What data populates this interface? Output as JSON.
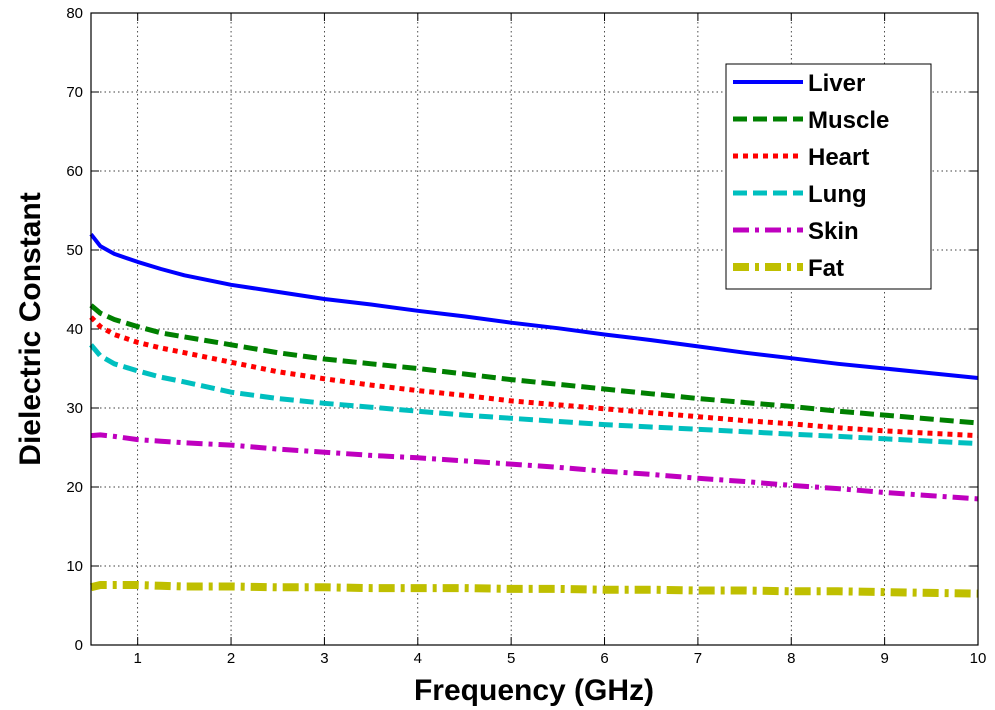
{
  "chart_data": {
    "type": "line",
    "title": "",
    "xlabel": "Frequency (GHz)",
    "ylabel": "Dielectric Constant",
    "xlim": [
      0.5,
      10
    ],
    "ylim": [
      0,
      80
    ],
    "xticks": [
      1,
      2,
      3,
      4,
      5,
      6,
      7,
      8,
      9,
      10
    ],
    "yticks": [
      0,
      10,
      20,
      30,
      40,
      50,
      60,
      70,
      80
    ],
    "grid": true,
    "legend_position": "top-right",
    "series": [
      {
        "name": "Liver",
        "color": "#0000ff",
        "style": "solid",
        "x": [
          0.5,
          0.6,
          0.75,
          1.0,
          1.25,
          1.5,
          2.0,
          2.5,
          3.0,
          3.5,
          4.0,
          4.5,
          5.0,
          5.5,
          6.0,
          6.5,
          7.0,
          7.5,
          8.0,
          8.5,
          9.0,
          9.5,
          10.0
        ],
        "y": [
          52,
          50.5,
          49.5,
          48.5,
          47.6,
          46.8,
          45.6,
          44.7,
          43.8,
          43.1,
          42.3,
          41.6,
          40.8,
          40.1,
          39.3,
          38.6,
          37.8,
          37.0,
          36.3,
          35.6,
          35.0,
          34.4,
          33.8
        ]
      },
      {
        "name": "Muscle",
        "color": "#008000",
        "style": "dashed",
        "x": [
          0.5,
          0.6,
          0.75,
          1.0,
          1.25,
          1.5,
          2.0,
          2.5,
          3.0,
          3.5,
          4.0,
          4.5,
          5.0,
          5.5,
          6.0,
          6.5,
          7.0,
          7.5,
          8.0,
          8.5,
          9.0,
          9.5,
          10.0
        ],
        "y": [
          43,
          42,
          41.2,
          40.3,
          39.5,
          39.0,
          38.0,
          37.0,
          36.2,
          35.6,
          35.0,
          34.3,
          33.6,
          33.0,
          32.4,
          31.8,
          31.2,
          30.7,
          30.2,
          29.6,
          29.1,
          28.6,
          28.1
        ]
      },
      {
        "name": "Heart",
        "color": "#ff0000",
        "style": "dotted",
        "x": [
          0.5,
          0.6,
          0.75,
          1.0,
          1.25,
          1.5,
          2.0,
          2.5,
          3.0,
          3.5,
          4.0,
          4.5,
          5.0,
          5.5,
          6.0,
          6.5,
          7.0,
          7.5,
          8.0,
          8.5,
          9.0,
          9.5,
          10.0
        ],
        "y": [
          41.5,
          40.3,
          39.3,
          38.3,
          37.6,
          37.0,
          35.8,
          34.6,
          33.7,
          32.9,
          32.2,
          31.6,
          30.9,
          30.4,
          29.9,
          29.4,
          28.9,
          28.4,
          28.0,
          27.5,
          27.1,
          26.8,
          26.5
        ]
      },
      {
        "name": "Lung",
        "color": "#00bfbf",
        "style": "dashed",
        "x": [
          0.5,
          0.6,
          0.75,
          1.0,
          1.25,
          1.5,
          2.0,
          2.5,
          3.0,
          3.5,
          4.0,
          4.5,
          5.0,
          5.5,
          6.0,
          6.5,
          7.0,
          7.5,
          8.0,
          8.5,
          9.0,
          9.5,
          10.0
        ],
        "y": [
          38,
          36.6,
          35.6,
          34.7,
          33.9,
          33.3,
          32.0,
          31.2,
          30.6,
          30.1,
          29.6,
          29.1,
          28.7,
          28.3,
          27.9,
          27.6,
          27.3,
          27.0,
          26.7,
          26.4,
          26.1,
          25.8,
          25.5
        ]
      },
      {
        "name": "Skin",
        "color": "#bf00bf",
        "style": "dashdot",
        "x": [
          0.5,
          0.6,
          0.75,
          1.0,
          1.25,
          1.5,
          2.0,
          2.5,
          3.0,
          3.5,
          4.0,
          4.5,
          5.0,
          5.5,
          6.0,
          6.5,
          7.0,
          7.5,
          8.0,
          8.5,
          9.0,
          9.5,
          10.0
        ],
        "y": [
          26.5,
          26.6,
          26.4,
          26.0,
          25.8,
          25.6,
          25.3,
          24.8,
          24.4,
          24.0,
          23.7,
          23.3,
          22.9,
          22.5,
          22.0,
          21.6,
          21.1,
          20.7,
          20.2,
          19.8,
          19.3,
          18.9,
          18.5
        ]
      },
      {
        "name": "Fat",
        "color": "#bfbf00",
        "style": "dashdot",
        "x": [
          0.5,
          0.6,
          0.75,
          1.0,
          1.25,
          1.5,
          2.0,
          2.5,
          3.0,
          3.5,
          4.0,
          4.5,
          5.0,
          5.5,
          6.0,
          6.5,
          7.0,
          7.5,
          8.0,
          8.5,
          9.0,
          9.5,
          10.0
        ],
        "y": [
          7.3,
          7.6,
          7.6,
          7.6,
          7.5,
          7.4,
          7.4,
          7.3,
          7.3,
          7.2,
          7.2,
          7.2,
          7.1,
          7.1,
          7.0,
          7.0,
          6.9,
          6.9,
          6.8,
          6.8,
          6.7,
          6.6,
          6.5
        ]
      }
    ]
  }
}
